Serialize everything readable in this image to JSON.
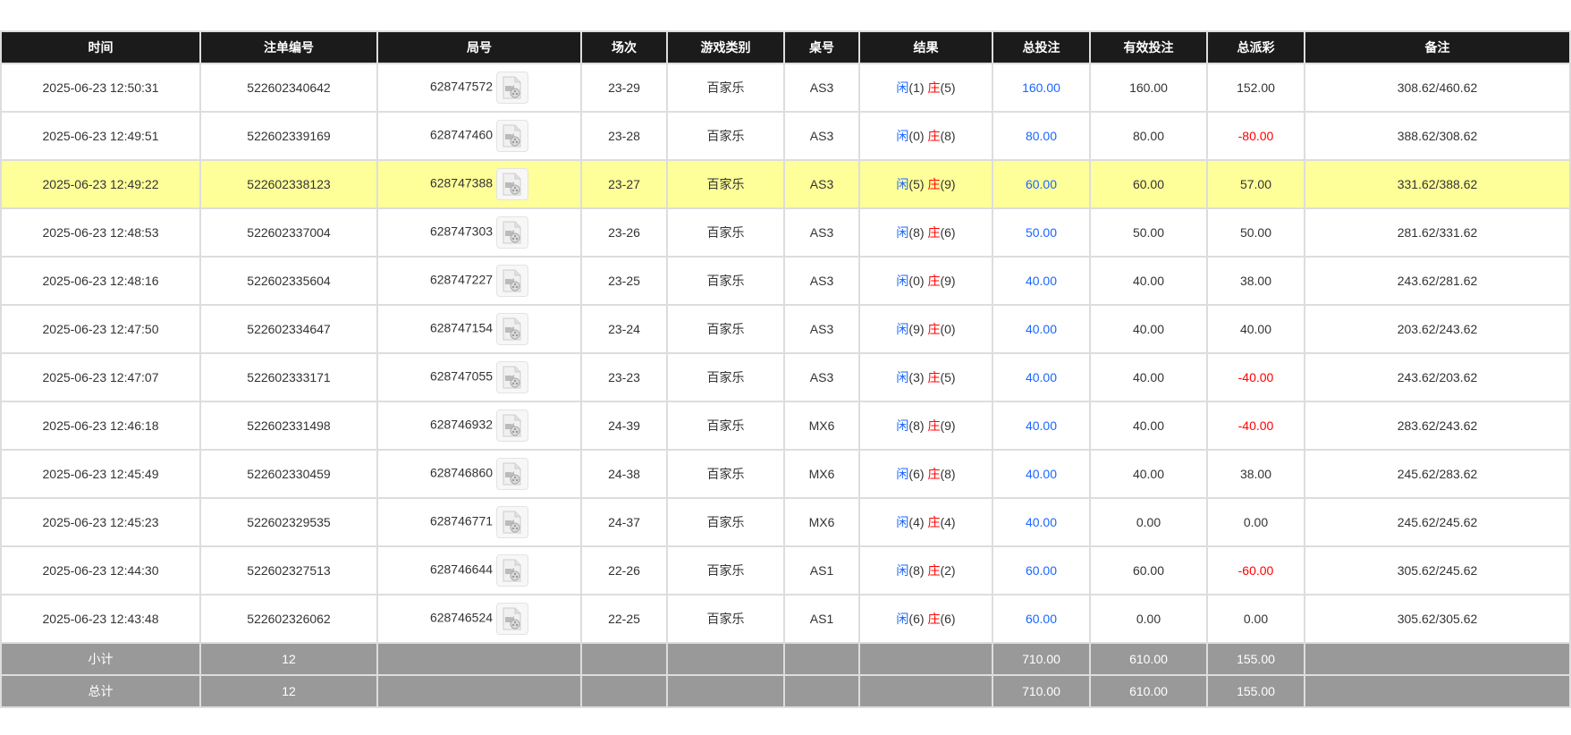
{
  "columns": [
    "时间",
    "注单编号",
    "局号",
    "场次",
    "游戏类别",
    "桌号",
    "结果",
    "总投注",
    "有效投注",
    "总派彩",
    "备注"
  ],
  "player_label": "闲",
  "banker_label": "庄",
  "colors": {
    "player": "#1a66ff",
    "banker": "#ff0000",
    "bet": "#1a66ff",
    "negative": "#ff0000",
    "highlight": "#ffff99",
    "header": "#1b1b1b",
    "footer": "#999999"
  },
  "rows": [
    {
      "time": "2025-06-23 12:50:31",
      "bet_id": "522602340642",
      "round": "628747572",
      "shoe": "23-29",
      "game": "百家乐",
      "table": "AS3",
      "player": "(1)",
      "banker": "(5)",
      "total_bet": "160.00",
      "valid_bet": "160.00",
      "payout": "152.00",
      "note": "308.62/460.62"
    },
    {
      "time": "2025-06-23 12:49:51",
      "bet_id": "522602339169",
      "round": "628747460",
      "shoe": "23-28",
      "game": "百家乐",
      "table": "AS3",
      "player": "(0)",
      "banker": "(8)",
      "total_bet": "80.00",
      "valid_bet": "80.00",
      "payout": "-80.00",
      "note": "388.62/308.62"
    },
    {
      "time": "2025-06-23 12:49:22",
      "bet_id": "522602338123",
      "round": "628747388",
      "shoe": "23-27",
      "game": "百家乐",
      "table": "AS3",
      "player": "(5)",
      "banker": "(9)",
      "total_bet": "60.00",
      "valid_bet": "60.00",
      "payout": "57.00",
      "note": "331.62/388.62",
      "highlighted": true
    },
    {
      "time": "2025-06-23 12:48:53",
      "bet_id": "522602337004",
      "round": "628747303",
      "shoe": "23-26",
      "game": "百家乐",
      "table": "AS3",
      "player": "(8)",
      "banker": "(6)",
      "total_bet": "50.00",
      "valid_bet": "50.00",
      "payout": "50.00",
      "note": "281.62/331.62"
    },
    {
      "time": "2025-06-23 12:48:16",
      "bet_id": "522602335604",
      "round": "628747227",
      "shoe": "23-25",
      "game": "百家乐",
      "table": "AS3",
      "player": "(0)",
      "banker": "(9)",
      "total_bet": "40.00",
      "valid_bet": "40.00",
      "payout": "38.00",
      "note": "243.62/281.62"
    },
    {
      "time": "2025-06-23 12:47:50",
      "bet_id": "522602334647",
      "round": "628747154",
      "shoe": "23-24",
      "game": "百家乐",
      "table": "AS3",
      "player": "(9)",
      "banker": "(0)",
      "total_bet": "40.00",
      "valid_bet": "40.00",
      "payout": "40.00",
      "note": "203.62/243.62"
    },
    {
      "time": "2025-06-23 12:47:07",
      "bet_id": "522602333171",
      "round": "628747055",
      "shoe": "23-23",
      "game": "百家乐",
      "table": "AS3",
      "player": "(3)",
      "banker": "(5)",
      "total_bet": "40.00",
      "valid_bet": "40.00",
      "payout": "-40.00",
      "note": "243.62/203.62"
    },
    {
      "time": "2025-06-23 12:46:18",
      "bet_id": "522602331498",
      "round": "628746932",
      "shoe": "24-39",
      "game": "百家乐",
      "table": "MX6",
      "player": "(8)",
      "banker": "(9)",
      "total_bet": "40.00",
      "valid_bet": "40.00",
      "payout": "-40.00",
      "note": "283.62/243.62"
    },
    {
      "time": "2025-06-23 12:45:49",
      "bet_id": "522602330459",
      "round": "628746860",
      "shoe": "24-38",
      "game": "百家乐",
      "table": "MX6",
      "player": "(6)",
      "banker": "(8)",
      "total_bet": "40.00",
      "valid_bet": "40.00",
      "payout": "38.00",
      "note": "245.62/283.62"
    },
    {
      "time": "2025-06-23 12:45:23",
      "bet_id": "522602329535",
      "round": "628746771",
      "shoe": "24-37",
      "game": "百家乐",
      "table": "MX6",
      "player": "(4)",
      "banker": "(4)",
      "total_bet": "40.00",
      "valid_bet": "0.00",
      "payout": "0.00",
      "note": "245.62/245.62"
    },
    {
      "time": "2025-06-23 12:44:30",
      "bet_id": "522602327513",
      "round": "628746644",
      "shoe": "22-26",
      "game": "百家乐",
      "table": "AS1",
      "player": "(8)",
      "banker": "(2)",
      "total_bet": "60.00",
      "valid_bet": "60.00",
      "payout": "-60.00",
      "note": "305.62/245.62"
    },
    {
      "time": "2025-06-23 12:43:48",
      "bet_id": "522602326062",
      "round": "628746524",
      "shoe": "22-25",
      "game": "百家乐",
      "table": "AS1",
      "player": "(6)",
      "banker": "(6)",
      "total_bet": "60.00",
      "valid_bet": "0.00",
      "payout": "0.00",
      "note": "305.62/305.62"
    }
  ],
  "footer": [
    {
      "label": "小计",
      "count": "12",
      "total_bet": "710.00",
      "valid_bet": "610.00",
      "payout": "155.00"
    },
    {
      "label": "总计",
      "count": "12",
      "total_bet": "710.00",
      "valid_bet": "610.00",
      "payout": "155.00"
    }
  ]
}
